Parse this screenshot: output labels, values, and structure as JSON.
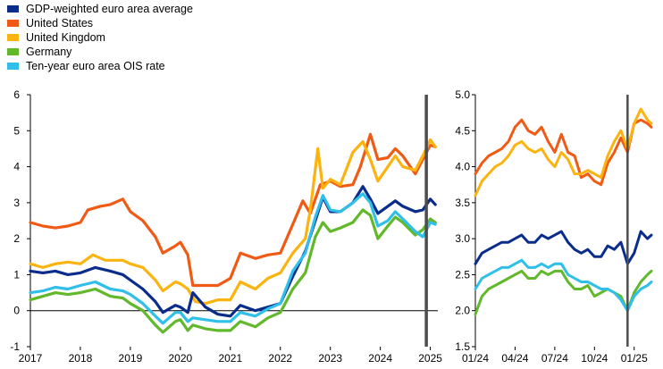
{
  "colors": {
    "gdp": "#0a2d8c",
    "us": "#f05a14",
    "uk": "#fbb30f",
    "de": "#62b82b",
    "ois": "#2fbfe8",
    "marker": "#4d4d4d"
  },
  "legend": [
    {
      "key": "gdp",
      "label": "GDP-weighted euro area average"
    },
    {
      "key": "us",
      "label": "United States"
    },
    {
      "key": "uk",
      "label": "United Kingdom"
    },
    {
      "key": "de",
      "label": "Germany"
    },
    {
      "key": "ois",
      "label": "Ten-year euro area OIS rate"
    }
  ],
  "chart_data": [
    {
      "type": "line",
      "title": "",
      "xlabel": "",
      "ylabel": "",
      "x_tick_labels": [
        "2017",
        "2018",
        "2019",
        "2020",
        "2021",
        "2022",
        "2023",
        "2024",
        "2025"
      ],
      "y_tick_labels": [
        "-1",
        "0",
        "1",
        "2",
        "3",
        "4",
        "5",
        "6"
      ],
      "xlim": [
        2017.0,
        2025.15
      ],
      "ylim": [
        -1,
        6
      ],
      "grid": false,
      "reference_line": {
        "y": 0
      },
      "vertical_marker": {
        "x": 2024.92
      },
      "series": [
        {
          "key": "us",
          "x": [
            2017.0,
            2017.25,
            2017.5,
            2017.75,
            2018.0,
            2018.15,
            2018.4,
            2018.6,
            2018.85,
            2019.0,
            2019.25,
            2019.5,
            2019.65,
            2019.9,
            2020.0,
            2020.15,
            2020.25,
            2020.5,
            2020.75,
            2021.0,
            2021.2,
            2021.5,
            2021.75,
            2022.0,
            2022.25,
            2022.45,
            2022.6,
            2022.8,
            2023.0,
            2023.2,
            2023.45,
            2023.6,
            2023.8,
            2023.95,
            2024.15,
            2024.3,
            2024.45,
            2024.7,
            2024.85,
            2025.0,
            2025.1
          ],
          "values": [
            2.45,
            2.35,
            2.3,
            2.35,
            2.45,
            2.8,
            2.9,
            2.95,
            3.1,
            2.75,
            2.5,
            2.05,
            1.6,
            1.8,
            1.9,
            1.55,
            0.7,
            0.7,
            0.7,
            0.9,
            1.6,
            1.45,
            1.55,
            1.6,
            2.4,
            3.05,
            2.7,
            3.5,
            3.6,
            3.45,
            3.5,
            4.0,
            4.9,
            4.2,
            4.25,
            4.5,
            4.3,
            3.8,
            4.2,
            4.6,
            4.55
          ]
        },
        {
          "key": "uk",
          "x": [
            2017.0,
            2017.25,
            2017.5,
            2017.75,
            2018.0,
            2018.25,
            2018.5,
            2018.85,
            2019.0,
            2019.25,
            2019.5,
            2019.65,
            2019.9,
            2020.0,
            2020.15,
            2020.3,
            2020.5,
            2020.75,
            2021.0,
            2021.2,
            2021.5,
            2021.75,
            2022.0,
            2022.25,
            2022.5,
            2022.6,
            2022.75,
            2022.85,
            2023.0,
            2023.2,
            2023.45,
            2023.65,
            2023.8,
            2023.95,
            2024.15,
            2024.3,
            2024.45,
            2024.7,
            2024.85,
            2025.0,
            2025.1
          ],
          "values": [
            1.3,
            1.2,
            1.3,
            1.35,
            1.3,
            1.55,
            1.4,
            1.4,
            1.3,
            1.2,
            0.85,
            0.55,
            0.8,
            0.75,
            0.6,
            0.25,
            0.2,
            0.3,
            0.3,
            0.8,
            0.6,
            0.9,
            1.05,
            1.6,
            2.0,
            2.8,
            4.5,
            3.4,
            3.65,
            3.5,
            4.4,
            4.7,
            4.2,
            3.6,
            4.0,
            4.3,
            4.0,
            3.9,
            4.3,
            4.75,
            4.55
          ]
        },
        {
          "key": "gdp",
          "x": [
            2017.0,
            2017.25,
            2017.5,
            2017.75,
            2018.0,
            2018.3,
            2018.6,
            2018.85,
            2019.0,
            2019.25,
            2019.5,
            2019.65,
            2019.9,
            2020.0,
            2020.15,
            2020.25,
            2020.5,
            2020.75,
            2021.0,
            2021.2,
            2021.5,
            2021.75,
            2022.0,
            2022.25,
            2022.5,
            2022.7,
            2022.85,
            2023.0,
            2023.2,
            2023.45,
            2023.65,
            2023.8,
            2023.95,
            2024.15,
            2024.3,
            2024.45,
            2024.7,
            2024.85,
            2025.0,
            2025.1
          ],
          "values": [
            1.1,
            1.05,
            1.1,
            1.0,
            1.05,
            1.2,
            1.1,
            1.0,
            0.85,
            0.6,
            0.25,
            -0.05,
            0.15,
            0.1,
            -0.05,
            0.5,
            0.1,
            -0.1,
            -0.15,
            0.15,
            0.0,
            0.1,
            0.2,
            0.95,
            1.65,
            2.5,
            3.15,
            2.75,
            2.75,
            3.0,
            3.45,
            3.1,
            2.7,
            2.9,
            3.05,
            2.9,
            2.75,
            2.8,
            3.1,
            2.95
          ]
        },
        {
          "key": "de",
          "x": [
            2017.0,
            2017.25,
            2017.5,
            2017.75,
            2018.0,
            2018.3,
            2018.6,
            2018.85,
            2019.0,
            2019.25,
            2019.5,
            2019.65,
            2019.9,
            2020.0,
            2020.15,
            2020.25,
            2020.5,
            2020.75,
            2021.0,
            2021.2,
            2021.5,
            2021.75,
            2022.0,
            2022.25,
            2022.5,
            2022.7,
            2022.85,
            2023.0,
            2023.2,
            2023.45,
            2023.65,
            2023.8,
            2023.95,
            2024.15,
            2024.3,
            2024.45,
            2024.7,
            2024.85,
            2025.0,
            2025.1
          ],
          "values": [
            0.3,
            0.4,
            0.5,
            0.45,
            0.5,
            0.6,
            0.4,
            0.35,
            0.2,
            0.0,
            -0.4,
            -0.6,
            -0.3,
            -0.25,
            -0.55,
            -0.4,
            -0.5,
            -0.55,
            -0.55,
            -0.3,
            -0.45,
            -0.2,
            -0.05,
            0.6,
            1.05,
            2.05,
            2.45,
            2.2,
            2.3,
            2.45,
            2.8,
            2.65,
            2.0,
            2.35,
            2.6,
            2.45,
            2.1,
            2.25,
            2.55,
            2.45
          ]
        },
        {
          "key": "ois",
          "x": [
            2017.0,
            2017.25,
            2017.5,
            2017.75,
            2018.0,
            2018.3,
            2018.6,
            2018.85,
            2019.0,
            2019.25,
            2019.5,
            2019.65,
            2019.9,
            2020.0,
            2020.15,
            2020.25,
            2020.5,
            2020.75,
            2021.0,
            2021.2,
            2021.5,
            2021.75,
            2022.0,
            2022.25,
            2022.5,
            2022.7,
            2022.85,
            2023.0,
            2023.2,
            2023.45,
            2023.65,
            2023.8,
            2023.95,
            2024.15,
            2024.3,
            2024.45,
            2024.7,
            2024.85,
            2025.0,
            2025.1
          ],
          "values": [
            0.5,
            0.55,
            0.65,
            0.6,
            0.7,
            0.8,
            0.6,
            0.55,
            0.45,
            0.2,
            -0.15,
            -0.35,
            -0.05,
            -0.05,
            -0.3,
            -0.2,
            -0.25,
            -0.3,
            -0.3,
            -0.05,
            -0.15,
            0.05,
            0.2,
            1.1,
            1.6,
            2.6,
            3.2,
            2.8,
            2.75,
            3.0,
            3.25,
            3.0,
            2.35,
            2.5,
            2.75,
            2.55,
            2.2,
            2.05,
            2.45,
            2.4
          ]
        }
      ]
    },
    {
      "type": "line",
      "title": "",
      "xlabel": "",
      "ylabel": "",
      "x_tick_labels": [
        "01/24",
        "04/24",
        "07/24",
        "10/24",
        "01/25"
      ],
      "y_tick_labels": [
        "1.5",
        "2.0",
        "2.5",
        "3.0",
        "3.5",
        "4.0",
        "4.5",
        "5.0"
      ],
      "xlim": [
        0,
        13.3
      ],
      "ylim": [
        1.5,
        5.0
      ],
      "grid": false,
      "vertical_marker": {
        "x": 11.5
      },
      "series": [
        {
          "key": "us",
          "x": [
            0,
            0.5,
            1,
            1.5,
            2,
            2.5,
            3,
            3.5,
            4,
            4.5,
            5,
            5.5,
            6,
            6.5,
            7,
            7.5,
            8,
            8.5,
            9,
            9.5,
            10,
            10.5,
            11,
            11.5,
            12,
            12.5,
            13,
            13.3
          ],
          "values": [
            3.9,
            4.05,
            4.15,
            4.2,
            4.25,
            4.35,
            4.55,
            4.65,
            4.5,
            4.45,
            4.55,
            4.35,
            4.2,
            4.45,
            4.2,
            4.15,
            3.85,
            3.9,
            3.8,
            3.75,
            4.05,
            4.2,
            4.4,
            4.2,
            4.6,
            4.65,
            4.6,
            4.55
          ]
        },
        {
          "key": "uk",
          "x": [
            0,
            0.5,
            1,
            1.5,
            2,
            2.5,
            3,
            3.5,
            4,
            4.5,
            5,
            5.5,
            6,
            6.5,
            7,
            7.5,
            8,
            8.5,
            9,
            9.5,
            10,
            10.5,
            11,
            11.5,
            12,
            12.5,
            13,
            13.3
          ],
          "values": [
            3.6,
            3.8,
            3.9,
            4.0,
            4.05,
            4.15,
            4.3,
            4.35,
            4.25,
            4.2,
            4.25,
            4.1,
            4.0,
            4.2,
            4.1,
            3.9,
            3.9,
            3.95,
            3.9,
            3.85,
            4.15,
            4.35,
            4.5,
            4.25,
            4.6,
            4.8,
            4.65,
            4.6
          ]
        },
        {
          "key": "gdp",
          "x": [
            0,
            0.5,
            1,
            1.5,
            2,
            2.5,
            3,
            3.5,
            4,
            4.5,
            5,
            5.5,
            6,
            6.5,
            7,
            7.5,
            8,
            8.5,
            9,
            9.5,
            10,
            10.5,
            11,
            11.5,
            12,
            12.5,
            13,
            13.3
          ],
          "values": [
            2.65,
            2.8,
            2.85,
            2.9,
            2.95,
            2.95,
            3.0,
            3.05,
            2.95,
            2.95,
            3.05,
            3.0,
            3.05,
            3.1,
            2.95,
            2.85,
            2.8,
            2.85,
            2.75,
            2.75,
            2.9,
            2.85,
            2.95,
            2.65,
            2.8,
            3.1,
            3.0,
            3.05
          ]
        },
        {
          "key": "de",
          "x": [
            0,
            0.5,
            1,
            1.5,
            2,
            2.5,
            3,
            3.5,
            4,
            4.5,
            5,
            5.5,
            6,
            6.5,
            7,
            7.5,
            8,
            8.5,
            9,
            9.5,
            10,
            10.5,
            11,
            11.5,
            12,
            12.5,
            13,
            13.3
          ],
          "values": [
            1.95,
            2.2,
            2.3,
            2.35,
            2.4,
            2.45,
            2.5,
            2.55,
            2.45,
            2.45,
            2.55,
            2.5,
            2.55,
            2.55,
            2.4,
            2.3,
            2.3,
            2.35,
            2.2,
            2.25,
            2.3,
            2.25,
            2.2,
            2.0,
            2.25,
            2.4,
            2.5,
            2.55
          ]
        },
        {
          "key": "ois",
          "x": [
            0,
            0.5,
            1,
            1.5,
            2,
            2.5,
            3,
            3.5,
            4,
            4.5,
            5,
            5.5,
            6,
            6.5,
            7,
            7.5,
            8,
            8.5,
            9,
            9.5,
            10,
            10.5,
            11,
            11.5,
            12,
            12.5,
            13,
            13.3
          ],
          "values": [
            2.3,
            2.45,
            2.5,
            2.55,
            2.6,
            2.6,
            2.65,
            2.7,
            2.6,
            2.6,
            2.65,
            2.6,
            2.65,
            2.65,
            2.5,
            2.45,
            2.4,
            2.4,
            2.35,
            2.3,
            2.3,
            2.25,
            2.15,
            2.0,
            2.2,
            2.3,
            2.35,
            2.4
          ]
        }
      ]
    }
  ]
}
